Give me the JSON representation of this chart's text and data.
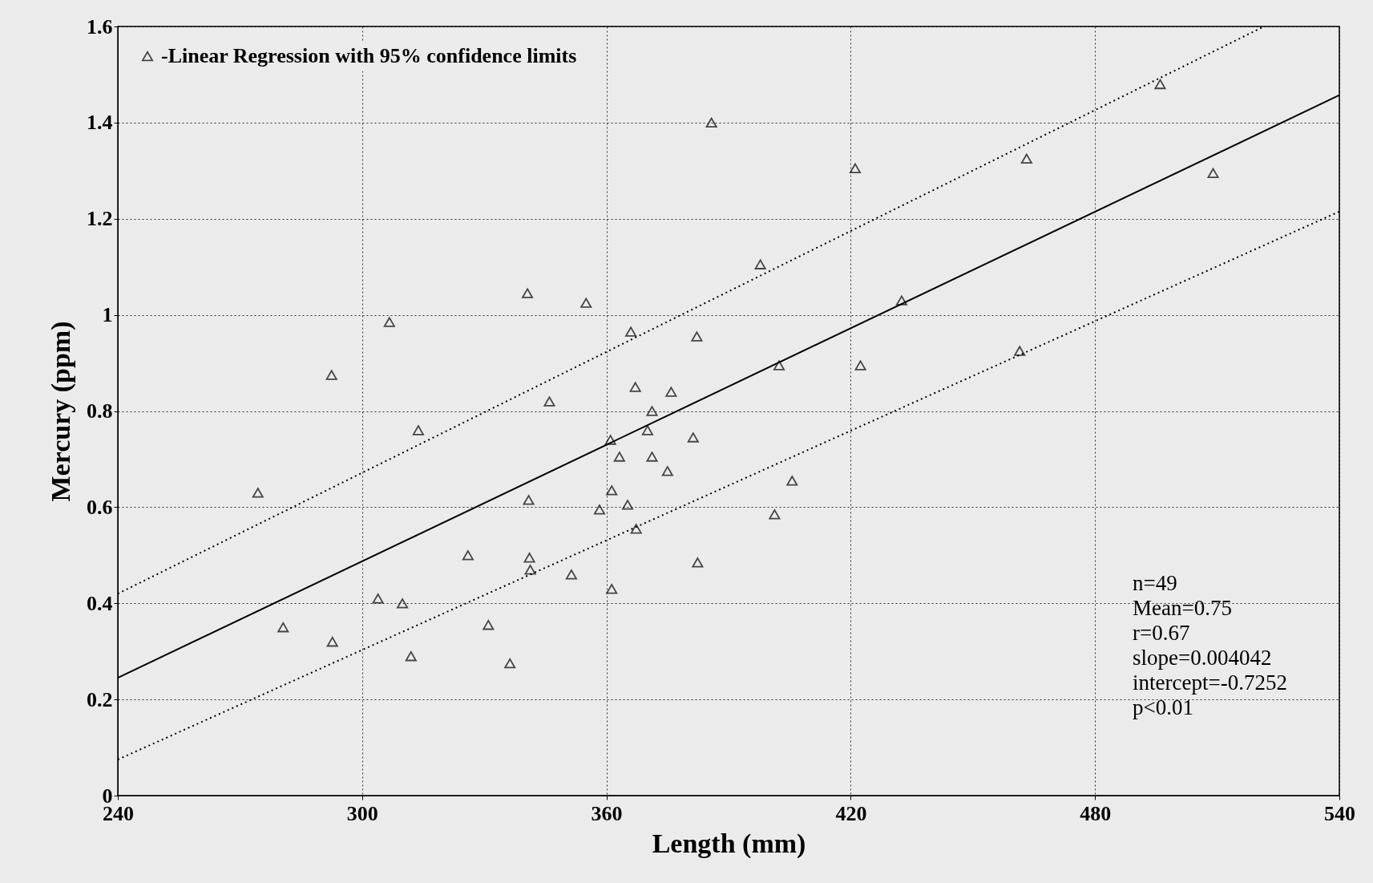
{
  "chart_data": {
    "type": "scatter",
    "xlabel": "Length (mm)",
    "ylabel": "Mercury (ppm)",
    "xlim": [
      240,
      540
    ],
    "xticks": [
      240,
      300,
      360,
      420,
      480,
      540
    ],
    "ylim": [
      0,
      1.6
    ],
    "yticks": [
      0,
      0.2,
      0.4,
      0.6,
      0.8,
      1,
      1.2,
      1.4,
      1.6
    ],
    "grid": true,
    "legend": "top left",
    "annotations": [
      "n=49",
      "Mean=0.75",
      "r=0.67",
      "slope=0.004042",
      "intercept=-0.7252",
      "p<0.01"
    ],
    "series": [
      {
        "type": "scatter",
        "name": "-Linear Regression with 95% confidence limits",
        "color": "#000000",
        "marker": "triangle",
        "x": [
          274.4,
          280.6,
          292.5,
          292.7,
          303.9,
          306.7,
          309.9,
          312,
          313.8,
          326,
          331,
          336.3,
          340.6,
          340.9,
          341.1,
          341.3,
          346,
          351.4,
          355,
          358.3,
          361,
          361.3,
          361.3,
          363.2,
          365.2,
          366,
          367.1,
          367.3,
          370.1,
          371.2,
          371.2,
          375,
          375.9,
          381.3,
          382.2,
          382.4,
          385.8,
          397.8,
          401.3,
          402.4,
          405.6,
          421.1,
          422.4,
          432.5,
          461.5,
          463.2,
          496,
          509
        ],
        "values": [
          0.63,
          0.35,
          0.875,
          0.32,
          0.41,
          0.985,
          0.4,
          0.29,
          0.76,
          0.5,
          0.355,
          0.275,
          1.045,
          0.615,
          0.495,
          0.47,
          0.82,
          0.46,
          1.025,
          0.595,
          0.74,
          0.635,
          0.43,
          0.705,
          0.605,
          0.965,
          0.85,
          0.555,
          0.76,
          0.8,
          0.705,
          0.675,
          0.84,
          0.745,
          0.955,
          0.485,
          1.4,
          1.105,
          0.585,
          0.895,
          0.655,
          1.305,
          0.895,
          1.03,
          0.925,
          1.325,
          1.48,
          1.295
        ]
      },
      {
        "type": "line",
        "color": "#000000",
        "line_style": "solid",
        "x": [
          240,
          540
        ],
        "values": [
          0.245,
          1.457
        ]
      },
      {
        "type": "line",
        "color": "#000000",
        "line_style": "dotted",
        "x": [
          240,
          521.5
        ],
        "values": [
          0.42,
          1.6
        ]
      },
      {
        "type": "line",
        "color": "#000000",
        "line_style": "dotted",
        "x": [
          240,
          540
        ],
        "values": [
          0.075,
          1.215
        ]
      }
    ]
  }
}
